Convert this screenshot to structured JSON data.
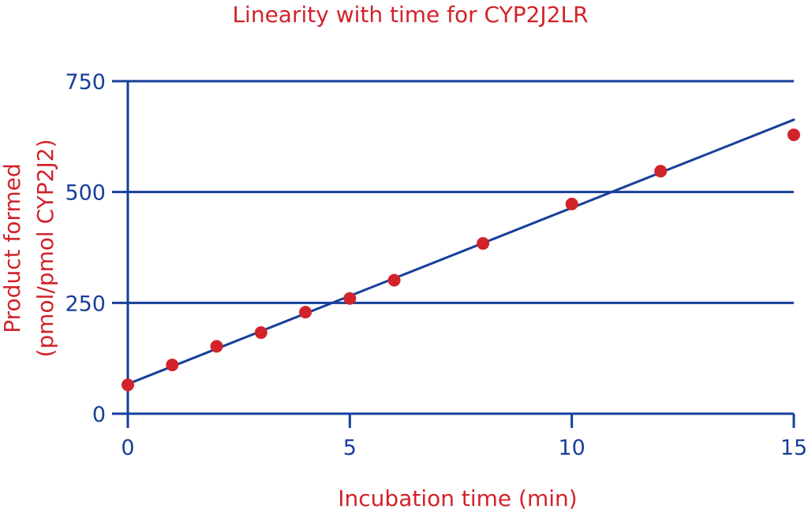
{
  "chart_data": {
    "type": "scatter",
    "title": "Linearity with time for CYP2J2LR",
    "xlabel": "Incubation time (min)",
    "ylabel_line1": "Product formed",
    "ylabel_line2": "(pmol/pmol CYP2J2)",
    "xlim": [
      0,
      15
    ],
    "ylim": [
      0,
      750
    ],
    "xticks": [
      0,
      5,
      10,
      15
    ],
    "yticks": [
      0,
      250,
      500,
      750
    ],
    "xtick_labels": [
      "0",
      "5",
      "10",
      "15"
    ],
    "ytick_labels": [
      "0",
      "250",
      "500",
      "750"
    ],
    "grid": "horizontal",
    "colors": {
      "points": "#d1232a",
      "axes": "#163f9a",
      "text": "#d1232a"
    },
    "points": [
      {
        "x": 0,
        "y": 65
      },
      {
        "x": 1,
        "y": 110
      },
      {
        "x": 2,
        "y": 152
      },
      {
        "x": 3,
        "y": 183
      },
      {
        "x": 4,
        "y": 229
      },
      {
        "x": 5,
        "y": 260
      },
      {
        "x": 6,
        "y": 301
      },
      {
        "x": 8,
        "y": 384
      },
      {
        "x": 10,
        "y": 473
      },
      {
        "x": 12,
        "y": 547
      },
      {
        "x": 15,
        "y": 629
      }
    ],
    "fit_line": {
      "x_start": 0,
      "y_start": 67,
      "x_end": 15,
      "y_end": 663
    }
  }
}
